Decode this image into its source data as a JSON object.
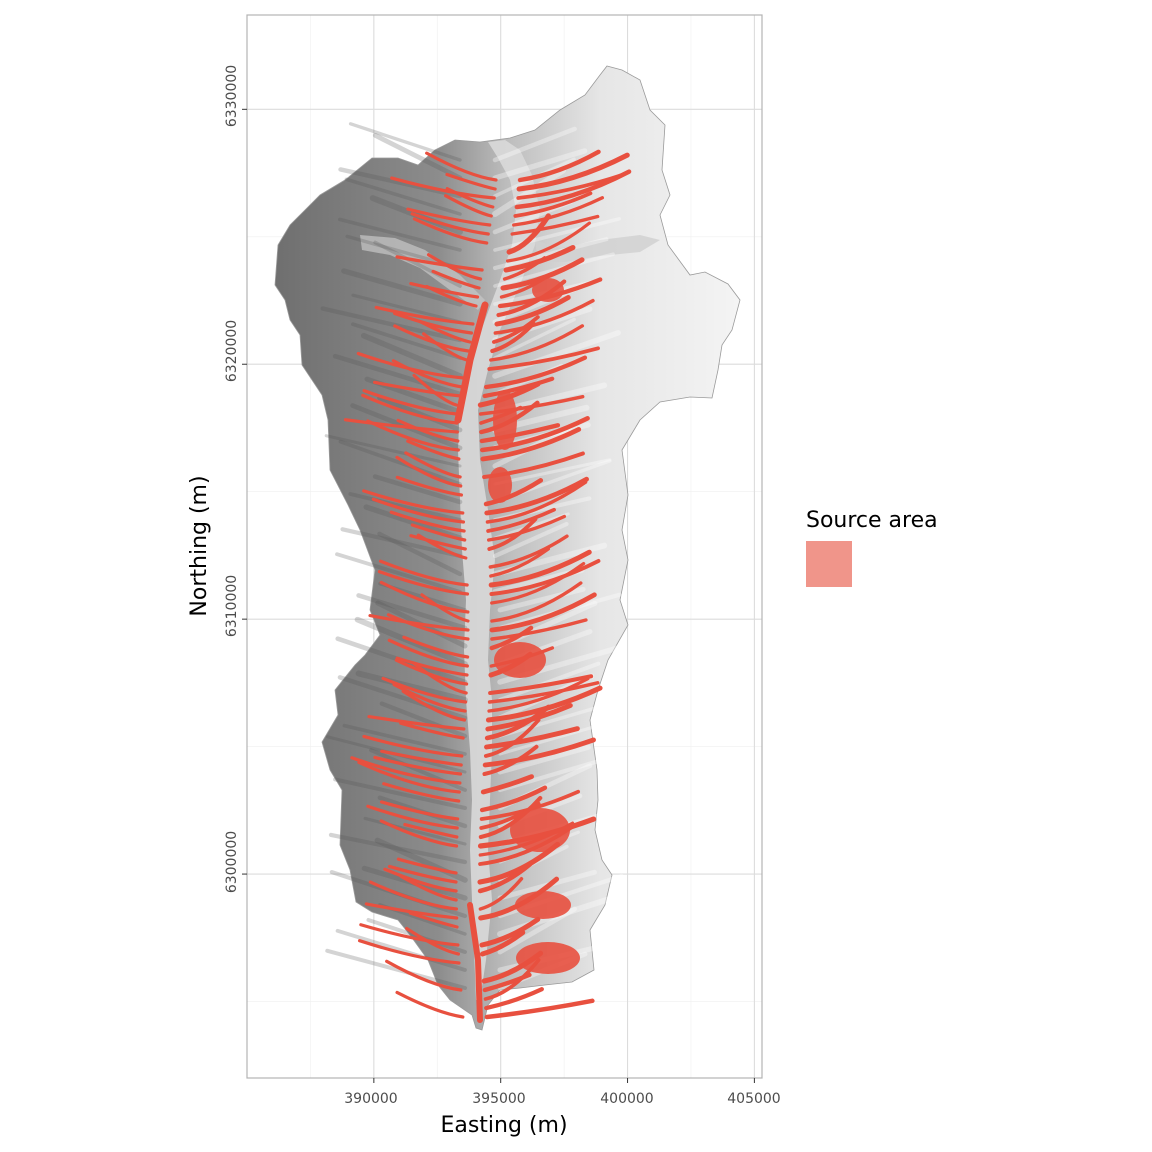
{
  "x_axis": {
    "title": "Easting (m)",
    "ticks": [
      "390000",
      "395000",
      "400000",
      "405000"
    ]
  },
  "y_axis": {
    "title": "Northing (m)",
    "ticks": [
      "6300000",
      "6310000",
      "6320000",
      "6330000"
    ]
  },
  "legend": {
    "title": "Source area",
    "fill_color": "#f0958a"
  },
  "map": {
    "source_area_color": "#e8503f",
    "panel_border_color": "#b3b3b3",
    "grid_major_color": "#dcdcdc",
    "grid_minor_color": "#efefef",
    "valley_floor_color": "#d9d9d9"
  },
  "chart_data": {
    "type": "map",
    "x_range": [
      385000,
      405300
    ],
    "y_range": [
      6292000,
      6333700
    ],
    "x_ticks": [
      390000,
      395000,
      400000,
      405000
    ],
    "y_ticks": [
      6300000,
      6310000,
      6320000,
      6330000
    ],
    "grid": true,
    "legend_position": "right",
    "layers": [
      "hillshade",
      "source area"
    ]
  }
}
